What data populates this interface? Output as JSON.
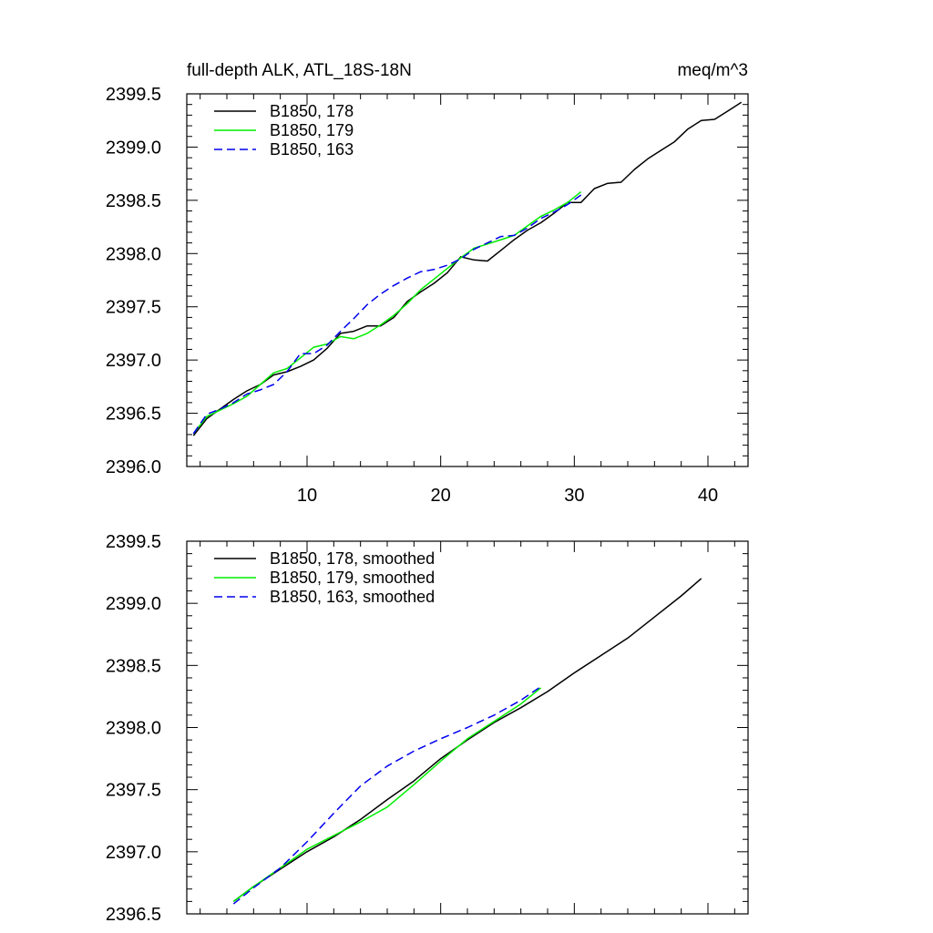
{
  "chart_data": [
    {
      "type": "line",
      "title_left": "full-depth ALK, ATL_18S-18N",
      "title_right": "meq/m^3",
      "xlim": [
        1,
        43
      ],
      "ylim": [
        2396.0,
        2399.5
      ],
      "xticks": [
        10,
        20,
        30,
        40
      ],
      "yticks": [
        2396.0,
        2396.5,
        2397.0,
        2397.5,
        2398.0,
        2398.5,
        2399.0,
        2399.5
      ],
      "xtick_labels": [
        "10",
        "20",
        "30",
        "40"
      ],
      "ytick_labels": [
        "2396.0",
        "2396.5",
        "2397.0",
        "2397.5",
        "2398.0",
        "2398.5",
        "2399.0",
        "2399.5"
      ],
      "legend_position": "top-left",
      "series": [
        {
          "name": "B1850, 178",
          "color": "#000000",
          "dash": "solid",
          "x": [
            1.5,
            2.5,
            3.5,
            4.5,
            5.5,
            6.5,
            7.5,
            8.5,
            9.5,
            10.5,
            11.5,
            12.5,
            13.5,
            14.5,
            15.5,
            16.5,
            17.5,
            18.5,
            19.5,
            20.5,
            21.5,
            22.5,
            23.5,
            24.5,
            25.5,
            26.5,
            27.5,
            28.5,
            29.5,
            30.5,
            31.5,
            32.5,
            33.5,
            34.5,
            35.5,
            36.5,
            37.5,
            38.5,
            39.5,
            40.5,
            41.5,
            42.5
          ],
          "y": [
            2396.29,
            2396.45,
            2396.54,
            2396.63,
            2396.71,
            2396.77,
            2396.86,
            2396.89,
            2396.94,
            2397.0,
            2397.11,
            2397.25,
            2397.27,
            2397.32,
            2397.32,
            2397.4,
            2397.55,
            2397.64,
            2397.72,
            2397.82,
            2397.97,
            2397.94,
            2397.93,
            2398.03,
            2398.13,
            2398.22,
            2398.29,
            2398.38,
            2398.48,
            2398.48,
            2398.61,
            2398.66,
            2398.67,
            2398.79,
            2398.89,
            2398.97,
            2399.05,
            2399.17,
            2399.25,
            2399.26,
            2399.34,
            2399.42
          ]
        },
        {
          "name": "B1850, 179",
          "color": "#00ee00",
          "dash": "solid",
          "x": [
            1.5,
            2.5,
            3.5,
            4.5,
            5.5,
            6.5,
            7.5,
            8.5,
            9.5,
            10.5,
            11.5,
            12.5,
            13.5,
            14.5,
            15.5,
            16.5,
            17.5,
            18.5,
            19.5,
            20.5,
            21.5,
            22.5,
            23.5,
            24.5,
            25.5,
            26.5,
            27.5,
            28.5,
            29.5,
            30.5
          ],
          "y": [
            2396.31,
            2396.47,
            2396.53,
            2396.59,
            2396.66,
            2396.77,
            2396.88,
            2396.92,
            2397.02,
            2397.12,
            2397.15,
            2397.22,
            2397.2,
            2397.25,
            2397.33,
            2397.42,
            2397.53,
            2397.66,
            2397.76,
            2397.86,
            2397.96,
            2398.05,
            2398.09,
            2398.13,
            2398.17,
            2398.26,
            2398.35,
            2398.41,
            2398.48,
            2398.58
          ]
        },
        {
          "name": "B1850, 163",
          "color": "#0000ee",
          "dash": "dashed",
          "x": [
            1.5,
            2.5,
            3.5,
            4.5,
            5.5,
            6.5,
            7.5,
            8.5,
            9.5,
            10.5,
            11.5,
            12.5,
            13.5,
            14.5,
            15.5,
            16.5,
            17.5,
            18.5,
            19.5,
            20.5,
            21.5,
            22.5,
            23.5,
            24.5,
            25.5,
            26.5,
            27.5,
            28.5,
            29.5,
            30.5
          ],
          "y": [
            2396.31,
            2396.49,
            2396.54,
            2396.6,
            2396.68,
            2396.72,
            2396.77,
            2396.89,
            2397.06,
            2397.06,
            2397.14,
            2397.27,
            2397.39,
            2397.52,
            2397.62,
            2397.7,
            2397.77,
            2397.83,
            2397.85,
            2397.89,
            2397.95,
            2398.04,
            2398.1,
            2398.16,
            2398.17,
            2398.24,
            2398.33,
            2398.39,
            2398.46,
            2398.55
          ]
        }
      ]
    },
    {
      "type": "line",
      "xlim": [
        1,
        43
      ],
      "ylim": [
        2396.5,
        2399.5
      ],
      "xticks": [
        10,
        20,
        30,
        40
      ],
      "yticks": [
        2396.5,
        2397.0,
        2397.5,
        2398.0,
        2398.5,
        2399.0,
        2399.5
      ],
      "ytick_labels": [
        "2396.5",
        "2397.0",
        "2397.5",
        "2398.0",
        "2398.5",
        "2399.0",
        "2399.5"
      ],
      "legend_position": "top-left",
      "series": [
        {
          "name": "B1850, 178, smoothed",
          "color": "#000000",
          "dash": "solid",
          "x": [
            4.5,
            6,
            8,
            10,
            12,
            14,
            16,
            18,
            20,
            22,
            24,
            26,
            28,
            30,
            32,
            34,
            36,
            38,
            39.5
          ],
          "y": [
            2396.6,
            2396.72,
            2396.86,
            2397.0,
            2397.12,
            2397.26,
            2397.42,
            2397.57,
            2397.75,
            2397.9,
            2398.04,
            2398.16,
            2398.29,
            2398.44,
            2398.58,
            2398.72,
            2398.89,
            2399.06,
            2399.2
          ]
        },
        {
          "name": "B1850, 179, smoothed",
          "color": "#00ee00",
          "dash": "solid",
          "x": [
            4.5,
            6,
            8,
            10,
            12,
            14,
            16,
            18,
            20,
            22,
            24,
            26,
            27.5
          ],
          "y": [
            2396.6,
            2396.72,
            2396.87,
            2397.02,
            2397.13,
            2397.24,
            2397.36,
            2397.54,
            2397.73,
            2397.91,
            2398.05,
            2398.19,
            2398.32
          ]
        },
        {
          "name": "B1850, 163, smoothed",
          "color": "#0000ee",
          "dash": "dashed",
          "x": [
            4.5,
            6,
            8,
            10,
            12,
            14,
            16,
            18,
            20,
            22,
            24,
            26,
            27.5
          ],
          "y": [
            2396.58,
            2396.71,
            2396.87,
            2397.08,
            2397.31,
            2397.53,
            2397.69,
            2397.81,
            2397.91,
            2398.0,
            2398.1,
            2398.22,
            2398.33
          ]
        }
      ]
    }
  ]
}
